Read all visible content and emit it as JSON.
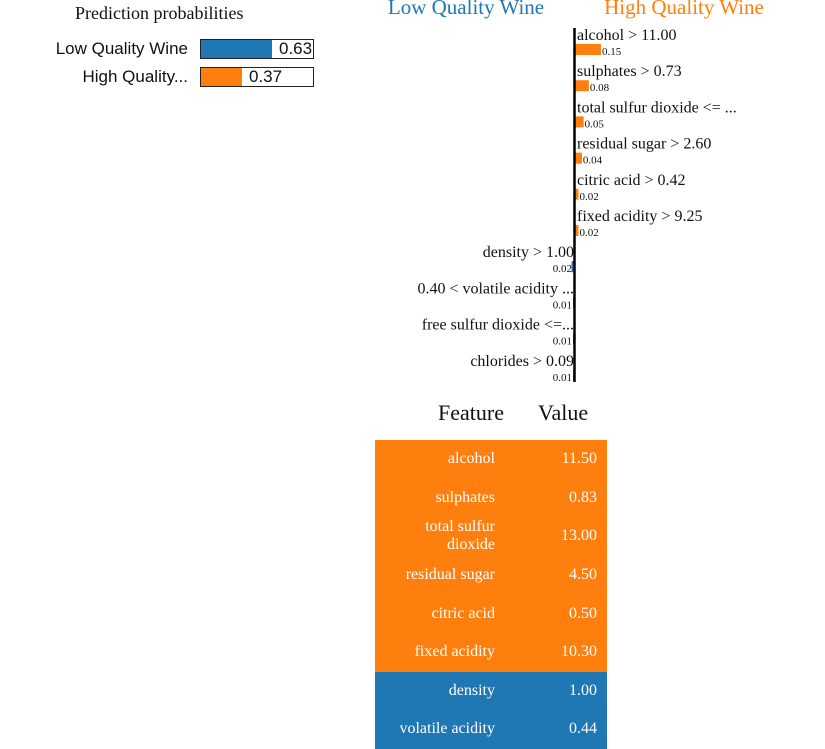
{
  "prediction": {
    "title": "Prediction probabilities",
    "classes": [
      {
        "label": "Low Quality Wine",
        "value": "0.63",
        "prob": 0.63,
        "color": "#1f77b4"
      },
      {
        "label": "High Quality...",
        "value": "0.37",
        "prob": 0.37,
        "color": "#ff7f0e"
      }
    ]
  },
  "chart_data": {
    "type": "bar",
    "negative_label": "Low Quality Wine",
    "positive_label": "High Quality Wine",
    "negative_color": "#1f77b4",
    "positive_color": "#ff7f0e",
    "series": [
      {
        "feature": "alcohol > 11.00",
        "weight": 0.15,
        "label": "0.15",
        "side": "positive"
      },
      {
        "feature": "sulphates > 0.73",
        "weight": 0.08,
        "label": "0.08",
        "side": "positive"
      },
      {
        "feature": "total sulfur dioxide <= ...",
        "weight": 0.05,
        "label": "0.05",
        "side": "positive"
      },
      {
        "feature": "residual sugar > 2.60",
        "weight": 0.04,
        "label": "0.04",
        "side": "positive"
      },
      {
        "feature": "citric acid > 0.42",
        "weight": 0.02,
        "label": "0.02",
        "side": "positive"
      },
      {
        "feature": "fixed acidity > 9.25",
        "weight": 0.02,
        "label": "0.02",
        "side": "positive"
      },
      {
        "feature": "density > 1.00",
        "weight": 0.02,
        "label": "0.02",
        "side": "negative"
      },
      {
        "feature": "0.40 < volatile acidity ...",
        "weight": 0.01,
        "label": "0.01",
        "side": "negative"
      },
      {
        "feature": "free sulfur dioxide <=...",
        "weight": 0.01,
        "label": "0.01",
        "side": "negative"
      },
      {
        "feature": "chlorides > 0.09",
        "weight": 0.01,
        "label": "0.01",
        "side": "negative"
      }
    ]
  },
  "feature_table": {
    "header_feature": "Feature",
    "header_value": "Value",
    "rows": [
      {
        "feature": "alcohol",
        "value": "11.50",
        "color": "#ff7f0e"
      },
      {
        "feature": "sulphates",
        "value": "0.83",
        "color": "#ff7f0e"
      },
      {
        "feature": "total sulfur dioxide",
        "value": "13.00",
        "color": "#ff7f0e"
      },
      {
        "feature": "residual sugar",
        "value": "4.50",
        "color": "#ff7f0e"
      },
      {
        "feature": "citric acid",
        "value": "0.50",
        "color": "#ff7f0e"
      },
      {
        "feature": "fixed acidity",
        "value": "10.30",
        "color": "#ff7f0e"
      },
      {
        "feature": "density",
        "value": "1.00",
        "color": "#1f77b4"
      },
      {
        "feature": "volatile acidity",
        "value": "0.44",
        "color": "#1f77b4"
      }
    ]
  }
}
